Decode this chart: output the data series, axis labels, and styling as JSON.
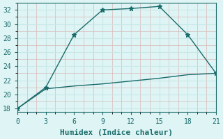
{
  "line1_x": [
    0,
    3,
    6,
    9,
    12,
    15,
    18,
    21
  ],
  "line1_y": [
    18,
    21,
    28.5,
    32,
    32.2,
    32.5,
    28.5,
    23
  ],
  "line2_x": [
    0,
    3,
    6,
    9,
    12,
    15,
    18,
    21
  ],
  "line2_y": [
    18,
    20.8,
    21.2,
    21.5,
    21.9,
    22.3,
    22.8,
    23.0
  ],
  "line_color": "#1a6b6b",
  "marker": "*",
  "bg_color": "#dff4f4",
  "grid_major_color": "#c8e8e8",
  "grid_minor_color": "#daeaea",
  "xlabel": "Humidex (Indice chaleur)",
  "xlim": [
    0,
    21
  ],
  "ylim": [
    17.5,
    33
  ],
  "xticks": [
    0,
    3,
    6,
    9,
    12,
    15,
    18,
    21
  ],
  "yticks": [
    18,
    20,
    22,
    24,
    26,
    28,
    30,
    32
  ],
  "tick_fontsize": 7,
  "xlabel_fontsize": 8
}
